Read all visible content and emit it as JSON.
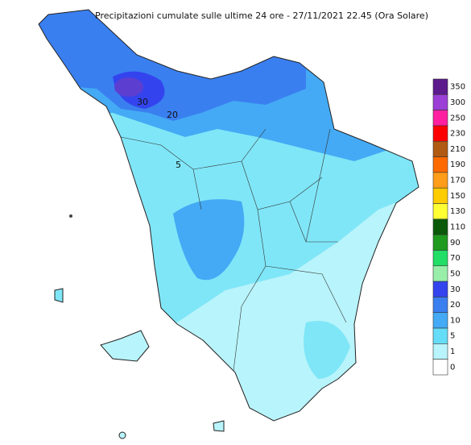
{
  "title": "Precipitazioni cumulate sulle ultime 24 ore - 27/11/2021 22.45 (Ora Solare)",
  "contour_labels": [
    "30",
    "20",
    "5"
  ],
  "legend": [
    {
      "value": 350,
      "color": "#5c1a8c"
    },
    {
      "value": 300,
      "color": "#9b3fd6"
    },
    {
      "value": 250,
      "color": "#ff1fa0"
    },
    {
      "value": 230,
      "color": "#ff0000"
    },
    {
      "value": 210,
      "color": "#b05a14"
    },
    {
      "value": 190,
      "color": "#ff6a00"
    },
    {
      "value": 170,
      "color": "#ff9c1a"
    },
    {
      "value": 150,
      "color": "#ffcc00"
    },
    {
      "value": 130,
      "color": "#ffff33"
    },
    {
      "value": 110,
      "color": "#0a5a0a"
    },
    {
      "value": 90,
      "color": "#1e9a1e"
    },
    {
      "value": 70,
      "color": "#22dd66"
    },
    {
      "value": 50,
      "color": "#99eeaa"
    },
    {
      "value": 30,
      "color": "#3344ee"
    },
    {
      "value": 20,
      "color": "#3a7ff0"
    },
    {
      "value": 10,
      "color": "#44aaf5"
    },
    {
      "value": 5,
      "color": "#66ddf8"
    },
    {
      "value": 1,
      "color": "#b8f4fb"
    },
    {
      "value": 0,
      "color": "#ffffff"
    }
  ]
}
